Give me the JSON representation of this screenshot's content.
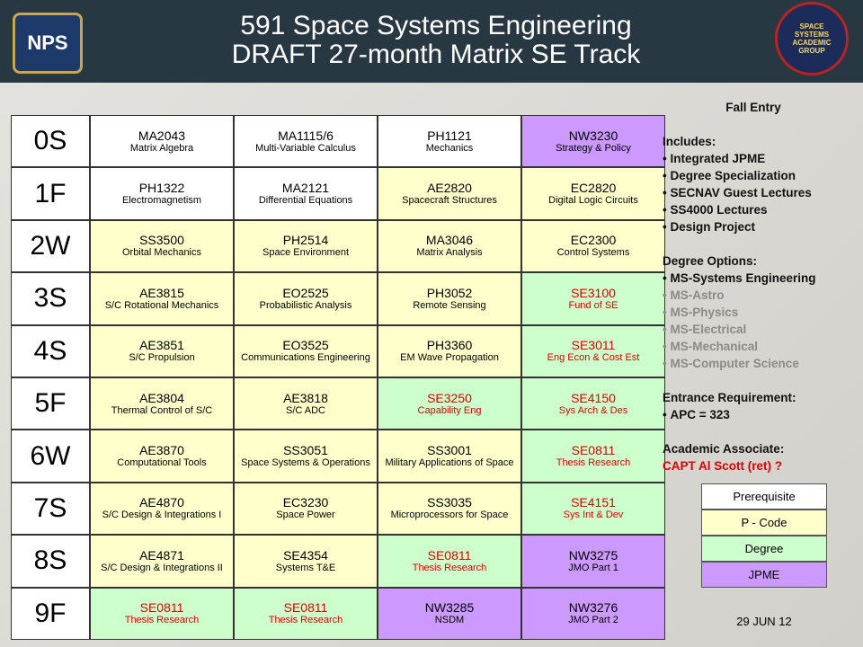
{
  "header": {
    "title_line1": "591 Space Systems Engineering",
    "title_line2": "DRAFT 27-month Matrix SE Track",
    "left_logo": "NPS",
    "right_logo": "SPACE SYSTEMS ACADEMIC GROUP"
  },
  "legend": [
    {
      "label": "Prerequisite",
      "color": "#ffffff"
    },
    {
      "label": "P - Code",
      "color": "#ffffcc"
    },
    {
      "label": "Degree",
      "color": "#ccffcc"
    },
    {
      "label": "JPME",
      "color": "#cc99ff"
    }
  ],
  "table": {
    "rows": [
      {
        "quarter": "0S",
        "cells": [
          {
            "code": "MA2043",
            "name": "Matrix Algebra",
            "category": "Prerequisite"
          },
          {
            "code": "MA1115/6",
            "name": "Multi-Variable Calculus",
            "category": "Prerequisite"
          },
          {
            "code": "PH1121",
            "name": "Mechanics",
            "category": "Prerequisite"
          },
          {
            "code": "NW3230",
            "name": "Strategy & Policy",
            "category": "JPME"
          }
        ]
      },
      {
        "quarter": "1F",
        "cells": [
          {
            "code": "PH1322",
            "name": "Electromagnetism",
            "category": "Prerequisite"
          },
          {
            "code": "MA2121",
            "name": "Differential Equations",
            "category": "Prerequisite"
          },
          {
            "code": "AE2820",
            "name": "Spacecraft Structures",
            "category": "P - Code"
          },
          {
            "code": "EC2820",
            "name": "Digital Logic Circuits",
            "category": "P - Code"
          }
        ]
      },
      {
        "quarter": "2W",
        "cells": [
          {
            "code": "SS3500",
            "name": "Orbital Mechanics",
            "category": "P - Code"
          },
          {
            "code": "PH2514",
            "name": "Space Environment",
            "category": "P - Code"
          },
          {
            "code": "MA3046",
            "name": "Matrix Analysis",
            "category": "P - Code"
          },
          {
            "code": "EC2300",
            "name": "Control Systems",
            "category": "P - Code"
          }
        ]
      },
      {
        "quarter": "3S",
        "cells": [
          {
            "code": "AE3815",
            "name": "S/C Rotational Mechanics",
            "category": "P - Code"
          },
          {
            "code": "EO2525",
            "name": "Probabilistic Analysis",
            "category": "P - Code"
          },
          {
            "code": "PH3052",
            "name": "Remote Sensing",
            "category": "P - Code"
          },
          {
            "code": "SE3100",
            "name": "Fund of SE",
            "category": "Degree",
            "red": true
          }
        ]
      },
      {
        "quarter": "4S",
        "cells": [
          {
            "code": "AE3851",
            "name": "S/C Propulsion",
            "category": "P - Code"
          },
          {
            "code": "EO3525",
            "name": "Communications Engineering",
            "category": "P - Code"
          },
          {
            "code": "PH3360",
            "name": "EM Wave Propagation",
            "category": "P - Code"
          },
          {
            "code": "SE3011",
            "name": "Eng Econ & Cost Est",
            "category": "Degree",
            "red": true
          }
        ]
      },
      {
        "quarter": "5F",
        "cells": [
          {
            "code": "AE3804",
            "name": "Thermal Control of S/C",
            "category": "P - Code"
          },
          {
            "code": "AE3818",
            "name": "S/C ADC",
            "category": "P - Code"
          },
          {
            "code": "SE3250",
            "name": "Capability Eng",
            "category": "Degree",
            "red": true
          },
          {
            "code": "SE4150",
            "name": "Sys Arch & Des",
            "category": "Degree",
            "red": true
          }
        ]
      },
      {
        "quarter": "6W",
        "cells": [
          {
            "code": "AE3870",
            "name": "Computational Tools",
            "category": "P - Code"
          },
          {
            "code": "SS3051",
            "name": "Space Systems & Operations",
            "category": "P - Code"
          },
          {
            "code": "SS3001",
            "name": "Military Applications of Space",
            "category": "P - Code"
          },
          {
            "code": "SE0811",
            "name": "Thesis Research",
            "category": "Degree",
            "red": true
          }
        ]
      },
      {
        "quarter": "7S",
        "cells": [
          {
            "code": "AE4870",
            "name": "S/C Design & Integrations I",
            "category": "P - Code"
          },
          {
            "code": "EC3230",
            "name": "Space Power",
            "category": "P - Code"
          },
          {
            "code": "SS3035",
            "name": "Microprocessors for Space",
            "category": "P - Code"
          },
          {
            "code": "SE4151",
            "name": "Sys Int & Dev",
            "category": "Degree",
            "red": true
          }
        ]
      },
      {
        "quarter": "8S",
        "cells": [
          {
            "code": "AE4871",
            "name": "S/C Design & Integrations II",
            "category": "P - Code"
          },
          {
            "code": "SE4354",
            "name": "Systems T&E",
            "category": "P - Code"
          },
          {
            "code": "SE0811",
            "name": "Thesis Research",
            "category": "Degree",
            "red": true
          },
          {
            "code": "NW3275",
            "name": "JMO Part 1",
            "category": "JPME"
          }
        ]
      },
      {
        "quarter": "9F",
        "cells": [
          {
            "code": "SE0811",
            "name": "Thesis Research",
            "category": "Degree",
            "red": true
          },
          {
            "code": "SE0811",
            "name": "Thesis Research",
            "category": "Degree",
            "red": true
          },
          {
            "code": "NW3285",
            "name": "NSDM",
            "category": "JPME"
          },
          {
            "code": "NW3276",
            "name": "JMO Part 2",
            "category": "JPME"
          }
        ]
      }
    ]
  },
  "sidebar": {
    "entry": "Fall Entry",
    "sections": [
      {
        "heading": "Includes:",
        "items": [
          {
            "text": "Integrated JPME"
          },
          {
            "text": "Degree Specialization"
          },
          {
            "text": "SECNAV Guest Lectures"
          },
          {
            "text": "SS4000 Lectures"
          },
          {
            "text": "Design Project"
          }
        ]
      },
      {
        "heading": "Degree Options:",
        "items": [
          {
            "text": "MS-Systems Engineering"
          },
          {
            "text": "MS-Astro",
            "muted": true
          },
          {
            "text": "MS-Physics",
            "muted": true
          },
          {
            "text": "MS-Electrical",
            "muted": true
          },
          {
            "text": "MS-Mechanical",
            "muted": true
          },
          {
            "text": "MS-Computer Science",
            "muted": true
          }
        ]
      },
      {
        "heading": "Entrance Requirement:",
        "items": [
          {
            "text": "APC = 323"
          }
        ]
      },
      {
        "heading": "Academic Associate:",
        "items": [
          {
            "text": "CAPT Al Scott (ret) ?",
            "bullet": false,
            "red": true
          }
        ]
      }
    ]
  },
  "date": "29 JUN 12"
}
